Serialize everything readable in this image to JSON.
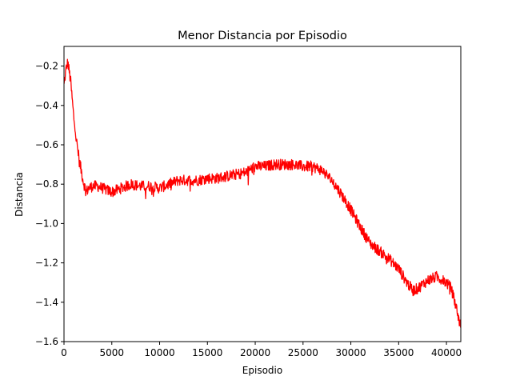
{
  "chart_data": {
    "type": "line",
    "title": "Menor Distancia por Episodio",
    "xlabel": "Episodio",
    "ylabel": "Distancia",
    "xlim": [
      0,
      41500
    ],
    "ylim": [
      -1.6,
      -0.1
    ],
    "x_ticks": [
      0,
      5000,
      10000,
      15000,
      20000,
      25000,
      30000,
      35000,
      40000
    ],
    "y_ticks": [
      -1.6,
      -1.4,
      -1.2,
      -1.0,
      -0.8,
      -0.6,
      -0.4,
      -0.2
    ],
    "x_tick_labels": [
      "0",
      "5000",
      "10000",
      "15000",
      "20000",
      "25000",
      "30000",
      "35000",
      "40000"
    ],
    "y_tick_labels": [
      "−1.6",
      "−1.4",
      "−1.2",
      "−1.0",
      "−0.8",
      "−0.6",
      "−0.4",
      "−0.2"
    ],
    "grid": false,
    "series": [
      {
        "color": "#ff0000",
        "x": [
          0,
          200,
          400,
          700,
          1000,
          1300,
          1600,
          2000,
          2300,
          2600,
          3000,
          3500,
          4000,
          4500,
          5000,
          5500,
          6000,
          7000,
          8000,
          9000,
          10000,
          11000,
          12000,
          13000,
          14000,
          15000,
          16000,
          17000,
          18000,
          19000,
          20000,
          21000,
          22000,
          23000,
          24000,
          25000,
          26000,
          27000,
          28000,
          29000,
          30000,
          31000,
          32000,
          33000,
          34000,
          35000,
          36000,
          36500,
          37000,
          38000,
          39000,
          40000,
          40500,
          41000,
          41500
        ],
        "y": [
          -0.3,
          -0.22,
          -0.18,
          -0.28,
          -0.45,
          -0.58,
          -0.68,
          -0.78,
          -0.84,
          -0.82,
          -0.81,
          -0.81,
          -0.82,
          -0.83,
          -0.84,
          -0.83,
          -0.82,
          -0.8,
          -0.81,
          -0.81,
          -0.82,
          -0.8,
          -0.78,
          -0.78,
          -0.78,
          -0.77,
          -0.77,
          -0.76,
          -0.75,
          -0.74,
          -0.71,
          -0.71,
          -0.7,
          -0.7,
          -0.7,
          -0.71,
          -0.71,
          -0.73,
          -0.78,
          -0.85,
          -0.93,
          -1.02,
          -1.1,
          -1.14,
          -1.18,
          -1.23,
          -1.31,
          -1.34,
          -1.33,
          -1.29,
          -1.27,
          -1.3,
          -1.33,
          -1.42,
          -1.53
        ]
      }
    ]
  }
}
